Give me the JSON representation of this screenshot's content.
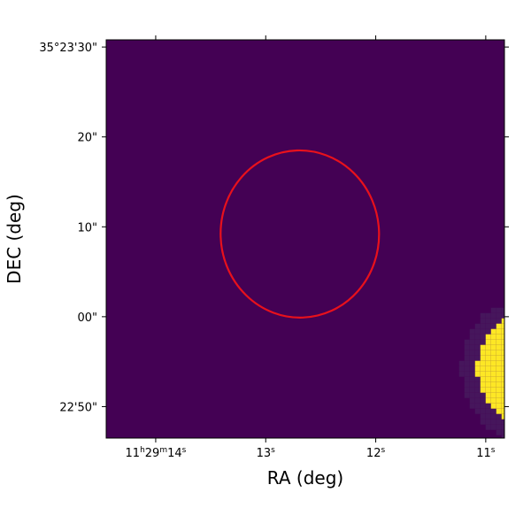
{
  "chart_data": {
    "type": "heatmap",
    "xlabel": "RA (deg)",
    "ylabel": "DEC (deg)",
    "grid": false,
    "colormap": {
      "name": "viridis",
      "background": "#440154",
      "halo": "#46165c",
      "source": "#fde725"
    },
    "x_ticks": [
      {
        "h": "11",
        "m": "29",
        "s": "14",
        "value_s": 14.0,
        "full": true
      },
      {
        "s": "13",
        "value_s": 13.0,
        "full": false
      },
      {
        "s": "12",
        "value_s": 12.0,
        "full": false
      },
      {
        "s": "11",
        "value_s": 11.0,
        "full": false
      }
    ],
    "y_ticks": [
      {
        "label": "35°23'30\"",
        "value_arcsec": 30
      },
      {
        "label": "20\"",
        "value_arcsec": 20
      },
      {
        "label": "10\"",
        "value_arcsec": 10
      },
      {
        "label": "00\"",
        "value_arcsec": 0
      },
      {
        "label": "22'50\"",
        "value_arcsec": -10
      }
    ],
    "x_range_s": [
      14.45,
      10.83
    ],
    "y_range_arcsec": [
      -13.5,
      30.8
    ],
    "aperture": {
      "shape": "ellipse",
      "color": "#e8111c",
      "center_ra_s": 12.69,
      "center_dec_arcsec": 9.2,
      "semi_axis_ra_s": 0.72,
      "semi_axis_dec_arcsec": 9.3
    },
    "source_blob": {
      "center_ra_s": 10.52,
      "center_dec_arcsec": -5.8,
      "radius_arcsec": 6.8,
      "halo_ra_range_s": [
        11.58,
        10.83
      ],
      "halo_dec_range_arcsec": [
        -13.5,
        1.0
      ]
    }
  }
}
